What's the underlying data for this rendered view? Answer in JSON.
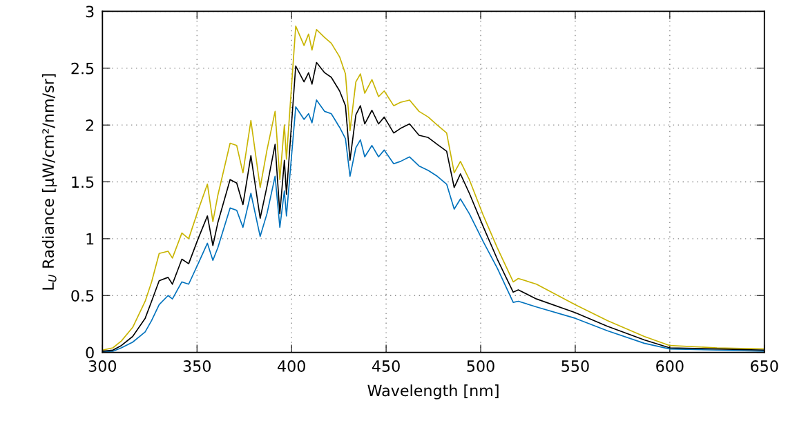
{
  "chart_data": {
    "type": "line",
    "xlabel": "Wavelength [nm]",
    "ylabel": "L$_{U}$ Radiance [µW/cm²/nm/sr]",
    "x": [
      300,
      305.5,
      310,
      316,
      322.6,
      326,
      330,
      334.7,
      337,
      342,
      345.6,
      350.6,
      355.5,
      358.4,
      361,
      367.5,
      371,
      374.3,
      378.5,
      383.4,
      387,
      391.3,
      393.8,
      396.2,
      397.3,
      402.2,
      406.6,
      409,
      410.8,
      413.2,
      417.5,
      421,
      425.4,
      428.5,
      430.9,
      434,
      436.4,
      438.7,
      442.5,
      446,
      449,
      454,
      457.6,
      462.4,
      467.4,
      472.3,
      477,
      482,
      486,
      489.3,
      494,
      501.5,
      508.8,
      517.2,
      519.9,
      529.5,
      550,
      567,
      586.5,
      600,
      625,
      650
    ],
    "series": [
      {
        "color": "#0072bd",
        "values": [
          0.005,
          0.01,
          0.04,
          0.09,
          0.18,
          0.28,
          0.42,
          0.5,
          0.47,
          0.62,
          0.6,
          0.78,
          0.96,
          0.81,
          0.92,
          1.27,
          1.25,
          1.1,
          1.4,
          1.02,
          1.22,
          1.55,
          1.1,
          1.42,
          1.2,
          2.16,
          2.05,
          2.1,
          2.02,
          2.22,
          2.12,
          2.1,
          1.98,
          1.88,
          1.55,
          1.8,
          1.87,
          1.72,
          1.82,
          1.72,
          1.78,
          1.66,
          1.68,
          1.72,
          1.64,
          1.6,
          1.55,
          1.48,
          1.26,
          1.35,
          1.22,
          0.97,
          0.74,
          0.44,
          0.45,
          0.4,
          0.3,
          0.19,
          0.08,
          0.03,
          0.02,
          0.01
        ]
      },
      {
        "color": "#c8b400",
        "values": [
          0.02,
          0.04,
          0.1,
          0.22,
          0.45,
          0.62,
          0.87,
          0.89,
          0.83,
          1.05,
          1.0,
          1.25,
          1.48,
          1.15,
          1.38,
          1.84,
          1.82,
          1.58,
          2.04,
          1.45,
          1.78,
          2.12,
          1.52,
          2.0,
          1.7,
          2.87,
          2.7,
          2.8,
          2.66,
          2.84,
          2.77,
          2.72,
          2.6,
          2.45,
          1.95,
          2.38,
          2.45,
          2.28,
          2.4,
          2.25,
          2.3,
          2.17,
          2.2,
          2.22,
          2.12,
          2.07,
          2.0,
          1.93,
          1.58,
          1.68,
          1.52,
          1.2,
          0.92,
          0.62,
          0.65,
          0.6,
          0.42,
          0.28,
          0.14,
          0.06,
          0.04,
          0.03
        ]
      },
      {
        "color": "#000000",
        "values": [
          0.01,
          0.02,
          0.06,
          0.14,
          0.3,
          0.45,
          0.63,
          0.66,
          0.6,
          0.82,
          0.78,
          1.0,
          1.2,
          0.94,
          1.14,
          1.52,
          1.49,
          1.3,
          1.73,
          1.18,
          1.46,
          1.83,
          1.22,
          1.69,
          1.39,
          2.52,
          2.38,
          2.46,
          2.36,
          2.55,
          2.46,
          2.42,
          2.3,
          2.17,
          1.69,
          2.09,
          2.17,
          2.01,
          2.13,
          2.01,
          2.07,
          1.93,
          1.97,
          2.01,
          1.91,
          1.89,
          1.83,
          1.77,
          1.45,
          1.57,
          1.4,
          1.1,
          0.82,
          0.53,
          0.55,
          0.47,
          0.35,
          0.23,
          0.11,
          0.04,
          0.03,
          0.02
        ]
      }
    ],
    "xlim": [
      300,
      650
    ],
    "xticks": [
      300,
      350,
      400,
      450,
      500,
      550,
      600,
      650
    ],
    "ylim": [
      0,
      3
    ],
    "yticks": [
      0,
      0.5,
      1,
      1.5,
      2,
      2.5,
      3
    ],
    "grid": true
  }
}
